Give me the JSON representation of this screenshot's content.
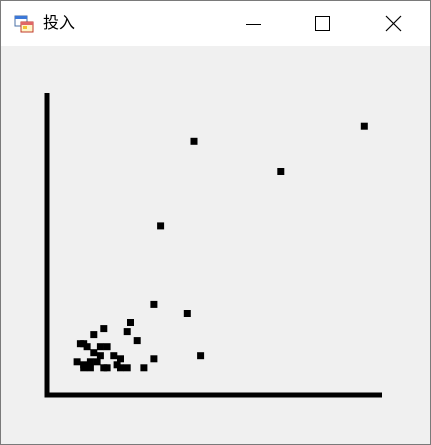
{
  "window": {
    "title": "投入",
    "icon": "app-window-icon",
    "controls": [
      "minimize-icon",
      "maximize-icon",
      "close-icon"
    ]
  },
  "chart_data": {
    "type": "scatter",
    "title": "",
    "xlabel": "",
    "ylabel": "",
    "grid": false,
    "axis_ticks": false,
    "xlim": [
      0,
      100
    ],
    "ylim": [
      0,
      100
    ],
    "marker_color": "#000000",
    "series": [
      {
        "points": [
          [
            95,
            89
          ],
          [
            44,
            84
          ],
          [
            70,
            74
          ],
          [
            34,
            56
          ],
          [
            32,
            30
          ],
          [
            42,
            27
          ],
          [
            25,
            24
          ],
          [
            17,
            22
          ],
          [
            24,
            21
          ],
          [
            14,
            20
          ],
          [
            27,
            18
          ],
          [
            11,
            17
          ],
          [
            16,
            16
          ],
          [
            18,
            16
          ],
          [
            10,
            17
          ],
          [
            12,
            16
          ],
          [
            14,
            14
          ],
          [
            16,
            13
          ],
          [
            20,
            13
          ],
          [
            22,
            12
          ],
          [
            13,
            11
          ],
          [
            15,
            11
          ],
          [
            11,
            10
          ],
          [
            32,
            12
          ],
          [
            46,
            13
          ],
          [
            9,
            11
          ],
          [
            13,
            9
          ],
          [
            17,
            9
          ],
          [
            18,
            9
          ],
          [
            21,
            10
          ],
          [
            11,
            9
          ],
          [
            22,
            9
          ],
          [
            24,
            9
          ],
          [
            29,
            9
          ]
        ]
      }
    ]
  }
}
